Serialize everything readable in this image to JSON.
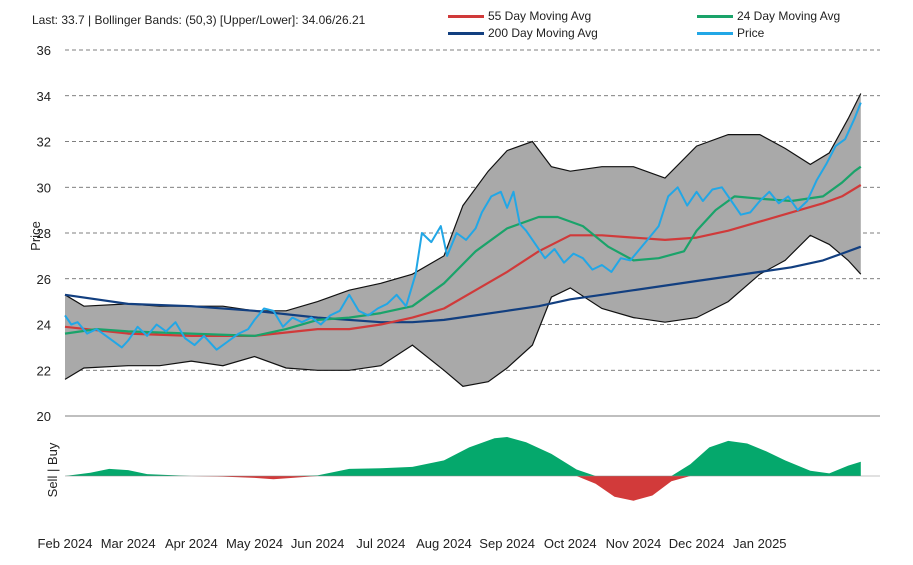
{
  "header": {
    "text": "Last: 33.7 | Bollinger Bands: (50,3) [Upper/Lower]: 34.06/26.21"
  },
  "legend": [
    {
      "name": "55 Day Moving Avg",
      "color": "#d03a3a"
    },
    {
      "name": "24 Day Moving Avg",
      "color": "#1aa36a"
    },
    {
      "name": "200 Day Moving Avg",
      "color": "#123f80"
    },
    {
      "name": "Price",
      "color": "#22a7e6"
    }
  ],
  "colors": {
    "band_fill": "#a9a9a9",
    "band_edge": "#111111",
    "buy": "#05a86c",
    "sell": "#d23a3a",
    "grid": "#555555"
  },
  "chart_data": {
    "type": "line",
    "title": "Last: 33.7 | Bollinger Bands: (50,3) [Upper/Lower]: 34.06/26.21",
    "ylabel": "Price",
    "ylim": [
      20,
      36
    ],
    "yticks": [
      20,
      22,
      24,
      26,
      28,
      30,
      32,
      34,
      36
    ],
    "grid": true,
    "x_range": [
      0,
      12
    ],
    "x_ticks": [
      "Feb 2024",
      "Mar 2024",
      "Apr 2024",
      "May 2024",
      "Jun 2024",
      "Jul 2024",
      "Aug 2024",
      "Sep 2024",
      "Oct 2024",
      "Nov 2024",
      "Dec 2024",
      "Jan 2025"
    ],
    "series": [
      {
        "name": "Upper Bollinger Band",
        "x": [
          0,
          0.3,
          1,
          1.5,
          2,
          2.5,
          3,
          3.5,
          4,
          4.5,
          5,
          5.5,
          6,
          6.3,
          6.7,
          7,
          7.4,
          7.7,
          8,
          8.5,
          9,
          9.5,
          10,
          10.5,
          11,
          11.4,
          11.8,
          12.1,
          12.4,
          12.6
        ],
        "values": [
          25.3,
          24.8,
          24.9,
          24.8,
          24.8,
          24.8,
          24.6,
          24.6,
          25.0,
          25.5,
          25.8,
          26.2,
          27.0,
          29.2,
          30.7,
          31.6,
          32.0,
          30.9,
          30.7,
          30.9,
          30.9,
          30.4,
          31.8,
          32.3,
          32.3,
          31.7,
          31.0,
          31.5,
          33.0,
          34.1
        ]
      },
      {
        "name": "Lower Bollinger Band",
        "x": [
          0,
          0.3,
          1,
          1.5,
          2,
          2.5,
          3,
          3.5,
          4,
          4.5,
          5,
          5.5,
          6,
          6.3,
          6.7,
          7,
          7.4,
          7.7,
          8,
          8.5,
          9,
          9.5,
          10,
          10.5,
          11,
          11.4,
          11.8,
          12.1,
          12.4,
          12.6
        ],
        "values": [
          21.6,
          22.1,
          22.2,
          22.2,
          22.4,
          22.2,
          22.6,
          22.1,
          22.0,
          22.0,
          22.2,
          23.1,
          22.0,
          21.3,
          21.5,
          22.1,
          23.1,
          25.2,
          25.6,
          24.7,
          24.3,
          24.1,
          24.3,
          25.0,
          26.2,
          26.8,
          27.9,
          27.5,
          26.8,
          26.2
        ]
      },
      {
        "name": "55 Day Moving Avg",
        "x": [
          0,
          1,
          2,
          3,
          4,
          4.5,
          5,
          5.5,
          6,
          6.5,
          7,
          7.5,
          8,
          8.5,
          9,
          9.5,
          10,
          10.5,
          11,
          11.5,
          12,
          12.3,
          12.6
        ],
        "values": [
          23.9,
          23.6,
          23.5,
          23.5,
          23.8,
          23.8,
          24.0,
          24.3,
          24.7,
          25.5,
          26.3,
          27.2,
          27.9,
          27.9,
          27.8,
          27.7,
          27.8,
          28.1,
          28.5,
          28.9,
          29.3,
          29.6,
          30.1
        ]
      },
      {
        "name": "24 Day Moving Avg",
        "x": [
          0,
          0.5,
          1,
          2,
          3,
          3.5,
          4,
          4.5,
          5,
          5.5,
          6,
          6.5,
          7,
          7.5,
          7.8,
          8.2,
          8.6,
          9,
          9.4,
          9.8,
          10,
          10.3,
          10.6,
          11,
          11.5,
          12,
          12.3,
          12.5,
          12.6
        ],
        "values": [
          23.6,
          23.8,
          23.7,
          23.6,
          23.5,
          23.8,
          24.2,
          24.3,
          24.5,
          24.8,
          25.8,
          27.2,
          28.2,
          28.7,
          28.7,
          28.3,
          27.4,
          26.8,
          26.9,
          27.2,
          28.1,
          29.0,
          29.6,
          29.5,
          29.4,
          29.6,
          30.2,
          30.7,
          30.9
        ]
      },
      {
        "name": "200 Day Moving Avg",
        "x": [
          0,
          1,
          2,
          3,
          4,
          5,
          5.5,
          6,
          6.5,
          7,
          7.5,
          8,
          8.5,
          9,
          9.5,
          10,
          10.5,
          11,
          11.5,
          12,
          12.3,
          12.6
        ],
        "values": [
          25.3,
          24.9,
          24.8,
          24.6,
          24.3,
          24.1,
          24.1,
          24.2,
          24.4,
          24.6,
          24.8,
          25.1,
          25.3,
          25.5,
          25.7,
          25.9,
          26.1,
          26.3,
          26.5,
          26.8,
          27.1,
          27.4
        ]
      },
      {
        "name": "Price",
        "x": [
          0,
          0.1,
          0.2,
          0.35,
          0.5,
          0.7,
          0.9,
          1.0,
          1.15,
          1.3,
          1.45,
          1.6,
          1.75,
          1.9,
          2.05,
          2.2,
          2.4,
          2.6,
          2.75,
          2.9,
          3.0,
          3.15,
          3.3,
          3.45,
          3.6,
          3.75,
          3.9,
          4.05,
          4.2,
          4.35,
          4.5,
          4.65,
          4.8,
          4.95,
          5.1,
          5.25,
          5.4,
          5.55,
          5.65,
          5.8,
          5.95,
          6.05,
          6.2,
          6.35,
          6.5,
          6.6,
          6.75,
          6.9,
          7.0,
          7.1,
          7.2,
          7.3,
          7.45,
          7.6,
          7.75,
          7.9,
          8.05,
          8.2,
          8.35,
          8.5,
          8.65,
          8.8,
          8.95,
          9.1,
          9.25,
          9.4,
          9.55,
          9.7,
          9.85,
          10.0,
          10.1,
          10.25,
          10.4,
          10.55,
          10.7,
          10.85,
          11.0,
          11.15,
          11.3,
          11.45,
          11.6,
          11.75,
          11.9,
          12.05,
          12.2,
          12.35,
          12.5,
          12.6
        ],
        "values": [
          24.4,
          24.0,
          24.1,
          23.6,
          23.8,
          23.4,
          23.0,
          23.3,
          23.9,
          23.5,
          24.0,
          23.7,
          24.1,
          23.4,
          23.1,
          23.5,
          22.9,
          23.3,
          23.6,
          23.8,
          24.2,
          24.7,
          24.6,
          23.9,
          24.3,
          24.1,
          24.3,
          24.0,
          24.4,
          24.6,
          25.3,
          24.6,
          24.4,
          24.7,
          24.9,
          25.3,
          24.8,
          26.2,
          28.0,
          27.6,
          28.3,
          27.0,
          28.0,
          27.7,
          28.2,
          28.9,
          29.6,
          29.8,
          29.1,
          29.8,
          28.4,
          28.1,
          27.5,
          26.9,
          27.3,
          26.7,
          27.1,
          26.9,
          26.4,
          26.6,
          26.3,
          26.9,
          26.8,
          27.3,
          27.8,
          28.3,
          29.6,
          30.0,
          29.2,
          29.8,
          29.4,
          29.9,
          30.0,
          29.4,
          28.8,
          28.9,
          29.4,
          29.8,
          29.3,
          29.6,
          29.0,
          29.4,
          30.3,
          31.0,
          31.8,
          32.1,
          33.0,
          33.7
        ]
      },
      {
        "name": "Sell | Buy",
        "x": [
          0,
          0.4,
          0.7,
          1.0,
          1.3,
          2.0,
          2.5,
          3.0,
          3.3,
          3.6,
          4.0,
          4.5,
          5.0,
          5.5,
          6.0,
          6.4,
          6.8,
          7.0,
          7.3,
          7.7,
          8.1,
          8.4,
          8.7,
          9.0,
          9.3,
          9.6,
          9.9,
          10.2,
          10.5,
          10.8,
          11.1,
          11.4,
          11.8,
          12.1,
          12.4,
          12.6
        ],
        "values": [
          0.0,
          0.25,
          0.55,
          0.45,
          0.15,
          0.0,
          -0.05,
          -0.15,
          -0.25,
          -0.15,
          0.05,
          0.55,
          0.6,
          0.7,
          1.2,
          2.2,
          2.9,
          3.0,
          2.6,
          1.7,
          0.5,
          -0.6,
          -1.6,
          -1.9,
          -1.5,
          -0.4,
          0.9,
          2.2,
          2.7,
          2.5,
          1.9,
          1.2,
          0.4,
          0.2,
          0.8,
          1.1
        ]
      }
    ],
    "oscillator_label": "Sell | Buy"
  }
}
